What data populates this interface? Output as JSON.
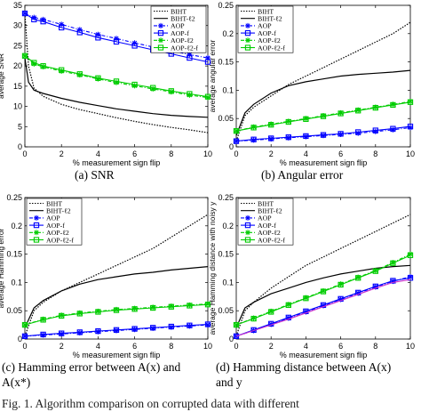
{
  "captions": {
    "a": "(a)  SNR",
    "b": "(b)  Angular error",
    "c_line1": "(c)  Hamming error between A(x) and",
    "c_line2": "A(x*)",
    "d_line1": "(d)  Hamming distance between A(x)",
    "d_line2": "and y"
  },
  "footer_fragment": "Fig. 1.   Algorithm comparison on corrupted data with different",
  "chart_data": [
    {
      "id": "snr",
      "type": "line",
      "xlabel": "% measurement sign flip",
      "ylabel": "average SNR",
      "xlim": [
        0,
        10
      ],
      "ylim": [
        0,
        35
      ],
      "xticks": [
        0,
        2,
        4,
        6,
        8,
        10
      ],
      "yticks": [
        0,
        5,
        10,
        15,
        20,
        25,
        30,
        35
      ],
      "legend": "top-right",
      "series": [
        {
          "name": "BIHT",
          "color": "#000000",
          "style": "dotted",
          "x": [
            0,
            0.2,
            0.5,
            1,
            2,
            3,
            4,
            5,
            6,
            7,
            8,
            9,
            10
          ],
          "y": [
            33,
            20,
            14.5,
            12.5,
            10.5,
            9.2,
            8.2,
            7.2,
            6.3,
            5.5,
            4.8,
            4.2,
            3.5
          ]
        },
        {
          "name": "BIHT-ℓ2",
          "color": "#000000",
          "style": "solid",
          "x": [
            0,
            0.2,
            0.5,
            1,
            2,
            3,
            4,
            5,
            6,
            7,
            8,
            9,
            10
          ],
          "y": [
            22,
            16,
            14,
            13.2,
            12,
            11,
            10.2,
            9.4,
            8.8,
            8.2,
            7.8,
            7.5,
            7.3
          ]
        },
        {
          "name": "AOP",
          "color": "#0000ff",
          "style": "dash-dot",
          "marker": "star",
          "x": [
            0,
            0.5,
            1,
            2,
            3,
            4,
            5,
            6,
            7,
            8,
            9,
            10
          ],
          "y": [
            33,
            32,
            31.5,
            30.3,
            29,
            27.8,
            26.8,
            25.7,
            24.7,
            23.8,
            22.8,
            22
          ]
        },
        {
          "name": "AOP-f",
          "color": "#0000ff",
          "style": "solid",
          "marker": "square",
          "x": [
            0,
            0.5,
            1,
            2,
            3,
            4,
            5,
            6,
            7,
            8,
            9,
            10
          ],
          "y": [
            33,
            31.5,
            31,
            29.5,
            28.3,
            27,
            26,
            25,
            24,
            23,
            22,
            21
          ]
        },
        {
          "name": "AOP-ℓ2",
          "color": "#00cc00",
          "style": "dash-dot",
          "marker": "star",
          "x": [
            0,
            0.5,
            1,
            2,
            3,
            4,
            5,
            6,
            7,
            8,
            9,
            10
          ],
          "y": [
            22.5,
            20.5,
            19.8,
            18.7,
            17.8,
            16.8,
            15.9,
            15.1,
            14.3,
            13.6,
            12.8,
            12.2
          ]
        },
        {
          "name": "AOP-ℓ2-f",
          "color": "#00cc00",
          "style": "solid",
          "marker": "square",
          "x": [
            0,
            0.5,
            1,
            2,
            3,
            4,
            5,
            6,
            7,
            8,
            9,
            10
          ],
          "y": [
            22.5,
            20.8,
            20,
            19,
            18,
            17,
            16.2,
            15.4,
            14.6,
            13.8,
            13.1,
            12.4
          ]
        }
      ]
    },
    {
      "id": "angular",
      "type": "line",
      "xlabel": "% measurement sign flip",
      "ylabel": "average angular error",
      "xlim": [
        0,
        10
      ],
      "ylim": [
        0,
        0.25
      ],
      "xticks": [
        0,
        2,
        4,
        6,
        8,
        10
      ],
      "yticks": [
        0,
        0.05,
        0.1,
        0.15,
        0.2,
        0.25
      ],
      "legend": "top-left",
      "series": [
        {
          "name": "BIHT",
          "color": "#000000",
          "style": "dotted",
          "x": [
            0,
            0.5,
            1,
            2,
            3,
            4,
            5,
            6,
            7,
            8,
            9,
            10
          ],
          "y": [
            0.01,
            0.055,
            0.07,
            0.09,
            0.11,
            0.125,
            0.14,
            0.155,
            0.17,
            0.185,
            0.2,
            0.22
          ]
        },
        {
          "name": "BIHT-ℓ2",
          "color": "#000000",
          "style": "solid",
          "x": [
            0,
            0.5,
            1,
            2,
            3,
            4,
            5,
            6,
            7,
            8,
            9,
            10
          ],
          "y": [
            0.02,
            0.06,
            0.075,
            0.095,
            0.108,
            0.115,
            0.12,
            0.125,
            0.128,
            0.13,
            0.132,
            0.135
          ]
        },
        {
          "name": "AOP",
          "color": "#0000ff",
          "style": "dash-dot",
          "marker": "star",
          "x": [
            0,
            1,
            2,
            3,
            4,
            5,
            6,
            7,
            8,
            9,
            10
          ],
          "y": [
            0.01,
            0.012,
            0.014,
            0.016,
            0.018,
            0.02,
            0.022,
            0.024,
            0.027,
            0.03,
            0.034
          ]
        },
        {
          "name": "AOP-f",
          "color": "#0000ff",
          "style": "solid",
          "marker": "square",
          "x": [
            0,
            1,
            2,
            3,
            4,
            5,
            6,
            7,
            8,
            9,
            10
          ],
          "y": [
            0.01,
            0.013,
            0.015,
            0.017,
            0.019,
            0.021,
            0.023,
            0.026,
            0.029,
            0.032,
            0.036
          ]
        },
        {
          "name": "AOP-ℓ2",
          "color": "#00cc00",
          "style": "dash-dot",
          "marker": "star",
          "x": [
            0,
            1,
            2,
            3,
            4,
            5,
            6,
            7,
            8,
            9,
            10
          ],
          "y": [
            0.028,
            0.035,
            0.04,
            0.045,
            0.05,
            0.055,
            0.06,
            0.065,
            0.07,
            0.075,
            0.08
          ]
        },
        {
          "name": "AOP-ℓ2-f",
          "color": "#00cc00",
          "style": "solid",
          "marker": "square",
          "x": [
            0,
            1,
            2,
            3,
            4,
            5,
            6,
            7,
            8,
            9,
            10
          ],
          "y": [
            0.028,
            0.034,
            0.039,
            0.044,
            0.049,
            0.054,
            0.059,
            0.064,
            0.069,
            0.074,
            0.079
          ]
        }
      ]
    },
    {
      "id": "hamming-error",
      "type": "line",
      "xlabel": "% measurement sign flip",
      "ylabel": "average Hamming error",
      "xlim": [
        0,
        10
      ],
      "ylim": [
        0,
        0.25
      ],
      "xticks": [
        0,
        2,
        4,
        6,
        8,
        10
      ],
      "yticks": [
        0,
        0.05,
        0.1,
        0.15,
        0.2,
        0.25
      ],
      "legend": "top-left",
      "series": [
        {
          "name": "BIHT",
          "color": "#000000",
          "style": "dotted",
          "x": [
            0,
            0.5,
            1,
            2,
            3,
            4,
            5,
            6,
            7,
            8,
            9,
            10
          ],
          "y": [
            0.005,
            0.05,
            0.065,
            0.085,
            0.1,
            0.115,
            0.13,
            0.145,
            0.16,
            0.18,
            0.2,
            0.22
          ]
        },
        {
          "name": "BIHT-ℓ2",
          "color": "#000000",
          "style": "solid",
          "x": [
            0,
            0.5,
            1,
            2,
            3,
            4,
            5,
            6,
            7,
            8,
            9,
            10
          ],
          "y": [
            0.02,
            0.055,
            0.068,
            0.085,
            0.097,
            0.105,
            0.11,
            0.115,
            0.118,
            0.122,
            0.125,
            0.128
          ]
        },
        {
          "name": "AOP",
          "color": "#0000ff",
          "style": "dash-dot",
          "marker": "star",
          "x": [
            0,
            1,
            2,
            3,
            4,
            5,
            6,
            7,
            8,
            9,
            10
          ],
          "y": [
            0.005,
            0.007,
            0.009,
            0.011,
            0.013,
            0.015,
            0.017,
            0.019,
            0.021,
            0.023,
            0.025
          ]
        },
        {
          "name": "AOP-f",
          "color": "#0000ff",
          "style": "solid",
          "marker": "square",
          "x": [
            0,
            1,
            2,
            3,
            4,
            5,
            6,
            7,
            8,
            9,
            10
          ],
          "y": [
            0.005,
            0.008,
            0.01,
            0.012,
            0.014,
            0.016,
            0.018,
            0.02,
            0.022,
            0.024,
            0.026
          ]
        },
        {
          "name": "AOP-ℓ2",
          "color": "#00cc00",
          "style": "dash-dot",
          "marker": "star",
          "x": [
            0,
            1,
            2,
            3,
            4,
            5,
            6,
            7,
            8,
            9,
            10
          ],
          "y": [
            0.025,
            0.035,
            0.042,
            0.046,
            0.049,
            0.052,
            0.054,
            0.056,
            0.058,
            0.06,
            0.062
          ]
        },
        {
          "name": "AOP-ℓ2-f",
          "color": "#00cc00",
          "style": "solid",
          "marker": "square",
          "x": [
            0,
            1,
            2,
            3,
            4,
            5,
            6,
            7,
            8,
            9,
            10
          ],
          "y": [
            0.025,
            0.034,
            0.041,
            0.045,
            0.048,
            0.051,
            0.053,
            0.055,
            0.057,
            0.059,
            0.061
          ]
        }
      ]
    },
    {
      "id": "hamming-distance",
      "type": "line",
      "xlabel": "% measurement sign flip",
      "ylabel": "average Hamming distance with noisy y",
      "xlim": [
        0,
        10
      ],
      "ylim": [
        0,
        0.25
      ],
      "xticks": [
        0,
        2,
        4,
        6,
        8,
        10
      ],
      "yticks": [
        0,
        0.05,
        0.1,
        0.15,
        0.2,
        0.25
      ],
      "legend": "top-left",
      "series": [
        {
          "name": "BIHT",
          "color": "#000000",
          "style": "dotted",
          "x": [
            0,
            0.5,
            1,
            2,
            3,
            4,
            5,
            6,
            7,
            8,
            9,
            10
          ],
          "y": [
            0.005,
            0.05,
            0.065,
            0.09,
            0.11,
            0.13,
            0.145,
            0.16,
            0.175,
            0.19,
            0.205,
            0.22
          ]
        },
        {
          "name": "BIHT-ℓ2",
          "color": "#000000",
          "style": "solid",
          "x": [
            0,
            0.5,
            1,
            2,
            3,
            4,
            5,
            6,
            7,
            8,
            9,
            10
          ],
          "y": [
            0.02,
            0.055,
            0.065,
            0.08,
            0.09,
            0.1,
            0.108,
            0.115,
            0.12,
            0.125,
            0.128,
            0.13
          ]
        },
        {
          "name": "AOP",
          "color": "#0000ff",
          "style": "dash-dot",
          "marker": "star",
          "x": [
            0,
            1,
            2,
            3,
            4,
            5,
            6,
            7,
            8,
            9,
            10
          ],
          "y": [
            0.005,
            0.015,
            0.026,
            0.037,
            0.048,
            0.059,
            0.07,
            0.081,
            0.092,
            0.102,
            0.11
          ]
        },
        {
          "name": "AOP-f",
          "color": "#0000ff",
          "style": "solid",
          "marker": "square",
          "x": [
            0,
            1,
            2,
            3,
            4,
            5,
            6,
            7,
            8,
            9,
            10
          ],
          "y": [
            0.005,
            0.016,
            0.027,
            0.038,
            0.049,
            0.06,
            0.071,
            0.082,
            0.093,
            0.103,
            0.108
          ]
        },
        {
          "name": "AOP-ℓ2",
          "color": "#00cc00",
          "style": "dash-dot",
          "marker": "star",
          "x": [
            0,
            1,
            2,
            3,
            4,
            5,
            6,
            7,
            8,
            9,
            10
          ],
          "y": [
            0.025,
            0.037,
            0.049,
            0.061,
            0.073,
            0.085,
            0.097,
            0.109,
            0.121,
            0.135,
            0.15
          ]
        },
        {
          "name": "AOP-ℓ2-f",
          "color": "#00cc00",
          "style": "solid",
          "marker": "square",
          "x": [
            0,
            1,
            2,
            3,
            4,
            5,
            6,
            7,
            8,
            9,
            10
          ],
          "y": [
            0.025,
            0.036,
            0.048,
            0.06,
            0.072,
            0.084,
            0.096,
            0.108,
            0.12,
            0.134,
            0.148
          ]
        },
        {
          "name": "",
          "color": "#cc33cc",
          "style": "solid",
          "x": [
            0,
            1,
            2,
            3,
            4,
            5,
            6,
            7,
            8,
            9,
            10
          ],
          "y": [
            0.005,
            0.015,
            0.025,
            0.035,
            0.046,
            0.057,
            0.068,
            0.079,
            0.09,
            0.1,
            0.105
          ]
        }
      ]
    }
  ]
}
